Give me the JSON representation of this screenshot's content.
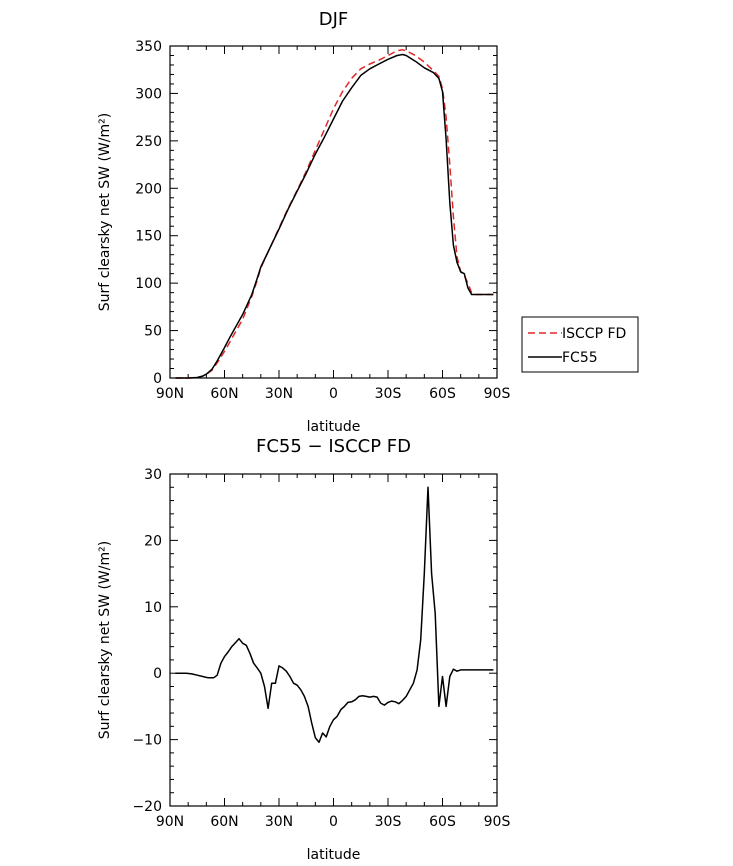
{
  "chart_data": [
    {
      "type": "line",
      "title": "DJF",
      "xlabel": "latitude",
      "ylabel": "Surf clearsky net SW (W/m²)",
      "xlim": [
        90,
        -90
      ],
      "ylim": [
        0,
        350
      ],
      "x_ticks": [
        90,
        60,
        30,
        0,
        -30,
        -60,
        -90
      ],
      "x_tick_labels": [
        "90N",
        "60N",
        "30N",
        "0",
        "30S",
        "60S",
        "90S"
      ],
      "y_ticks": [
        0,
        50,
        100,
        150,
        200,
        250,
        300,
        350
      ],
      "y_tick_labels": [
        "0",
        "50",
        "100",
        "150",
        "200",
        "250",
        "300",
        "350"
      ],
      "grid": false,
      "legend": "right",
      "series": [
        {
          "name": "ISCCP FD",
          "style": "dashed",
          "color": "#e0292b",
          "x": [
            87,
            80,
            75,
            72,
            70,
            67,
            64,
            60,
            57,
            55,
            50,
            45,
            42,
            40,
            35,
            30,
            25,
            20,
            15,
            10,
            5,
            0,
            -5,
            -10,
            -15,
            -20,
            -25,
            -30,
            -35,
            -38,
            -40,
            -45,
            -50,
            -55,
            -58,
            -60,
            -62,
            -64,
            -66,
            -68,
            -70,
            -72,
            -74,
            -76,
            -78,
            -80,
            -82,
            -85,
            -88
          ],
          "values": [
            0,
            0,
            0.5,
            2,
            4,
            8,
            16,
            28,
            38,
            45,
            62,
            86,
            103,
            116,
            137,
            158,
            179,
            198,
            218,
            240,
            262,
            284,
            302,
            316,
            326,
            331,
            335,
            340,
            345,
            346,
            345,
            340,
            333,
            324,
            318,
            305,
            275,
            225,
            170,
            128,
            112,
            108,
            100,
            90,
            88,
            88,
            88,
            88,
            88
          ]
        },
        {
          "name": "FC55",
          "style": "solid",
          "color": "#000000",
          "x": [
            87,
            80,
            75,
            72,
            70,
            67,
            64,
            60,
            57,
            55,
            50,
            45,
            42,
            40,
            35,
            30,
            25,
            20,
            15,
            10,
            5,
            0,
            -5,
            -10,
            -15,
            -20,
            -25,
            -30,
            -35,
            -38,
            -40,
            -45,
            -50,
            -55,
            -58,
            -60,
            -62,
            -64,
            -66,
            -68,
            -70,
            -72,
            -74,
            -76,
            -78,
            -80,
            -82,
            -85,
            -88
          ],
          "values": [
            0,
            0,
            0.5,
            2,
            4,
            9,
            18,
            32,
            43,
            50,
            67,
            88,
            105,
            117,
            137,
            157,
            178,
            197,
            216,
            236,
            254,
            273,
            292,
            306,
            319,
            326,
            331,
            336,
            340,
            341,
            340,
            334,
            327,
            322,
            316,
            302,
            252,
            185,
            140,
            122,
            112,
            110,
            95,
            88,
            88,
            88,
            88,
            88,
            88
          ]
        }
      ]
    },
    {
      "type": "line",
      "title": "FC55 − ISCCP FD",
      "xlabel": "latitude",
      "ylabel": "Surf clearsky net SW (W/m²)",
      "xlim": [
        90,
        -90
      ],
      "ylim": [
        -20,
        30
      ],
      "x_ticks": [
        90,
        60,
        30,
        0,
        -30,
        -60,
        -90
      ],
      "x_tick_labels": [
        "90N",
        "60N",
        "30N",
        "0",
        "30S",
        "60S",
        "90S"
      ],
      "y_ticks": [
        -20,
        -10,
        0,
        10,
        20,
        30
      ],
      "y_tick_labels": [
        "−20",
        "−10",
        "0",
        "10",
        "20",
        "30"
      ],
      "grid": false,
      "series": [
        {
          "style": "solid",
          "color": "#000000",
          "x": [
            87,
            81,
            78,
            75,
            72,
            69,
            66,
            64,
            62,
            60,
            58,
            56,
            54,
            52,
            50,
            48,
            46,
            44,
            42,
            40,
            38,
            36,
            34,
            32,
            30,
            28,
            26,
            24,
            22,
            20,
            18,
            16,
            14,
            12,
            10,
            8,
            6,
            4,
            2,
            0,
            -2,
            -4,
            -6,
            -8,
            -10,
            -12,
            -14,
            -16,
            -18,
            -20,
            -22,
            -24,
            -26,
            -28,
            -30,
            -32,
            -34,
            -36,
            -38,
            -40,
            -42,
            -44,
            -46,
            -48,
            -50,
            -52,
            -54,
            -56,
            -58,
            -60,
            -62,
            -64,
            -66,
            -68,
            -70,
            -72,
            -74,
            -76,
            -78,
            -80,
            -82,
            -84,
            -86,
            -88
          ],
          "values": [
            0,
            0,
            -0.1,
            -0.3,
            -0.5,
            -0.7,
            -0.7,
            -0.3,
            1.5,
            2.5,
            3.2,
            4,
            4.6,
            5.2,
            4.5,
            4.2,
            3,
            1.5,
            0.8,
            0,
            -2,
            -5.3,
            -1.5,
            -1.5,
            1.1,
            0.8,
            0.3,
            -0.5,
            -1.5,
            -1.8,
            -2.5,
            -3.5,
            -5,
            -7.5,
            -9.7,
            -10.4,
            -9,
            -9.6,
            -8,
            -7,
            -6.5,
            -5.5,
            -5,
            -4.4,
            -4.3,
            -4,
            -3.5,
            -3.4,
            -3.5,
            -3.6,
            -3.5,
            -3.6,
            -4.5,
            -4.8,
            -4.4,
            -4.2,
            -4.3,
            -4.6,
            -4.1,
            -3.5,
            -2.5,
            -1.5,
            0.5,
            5,
            15,
            28,
            15,
            9,
            -5,
            -0.5,
            -5,
            -0.5,
            0.6,
            0.3,
            0.5,
            0.5,
            0.5,
            0.5,
            0.5,
            0.5,
            0.5,
            0.5,
            0.5,
            0.5
          ]
        }
      ]
    }
  ]
}
